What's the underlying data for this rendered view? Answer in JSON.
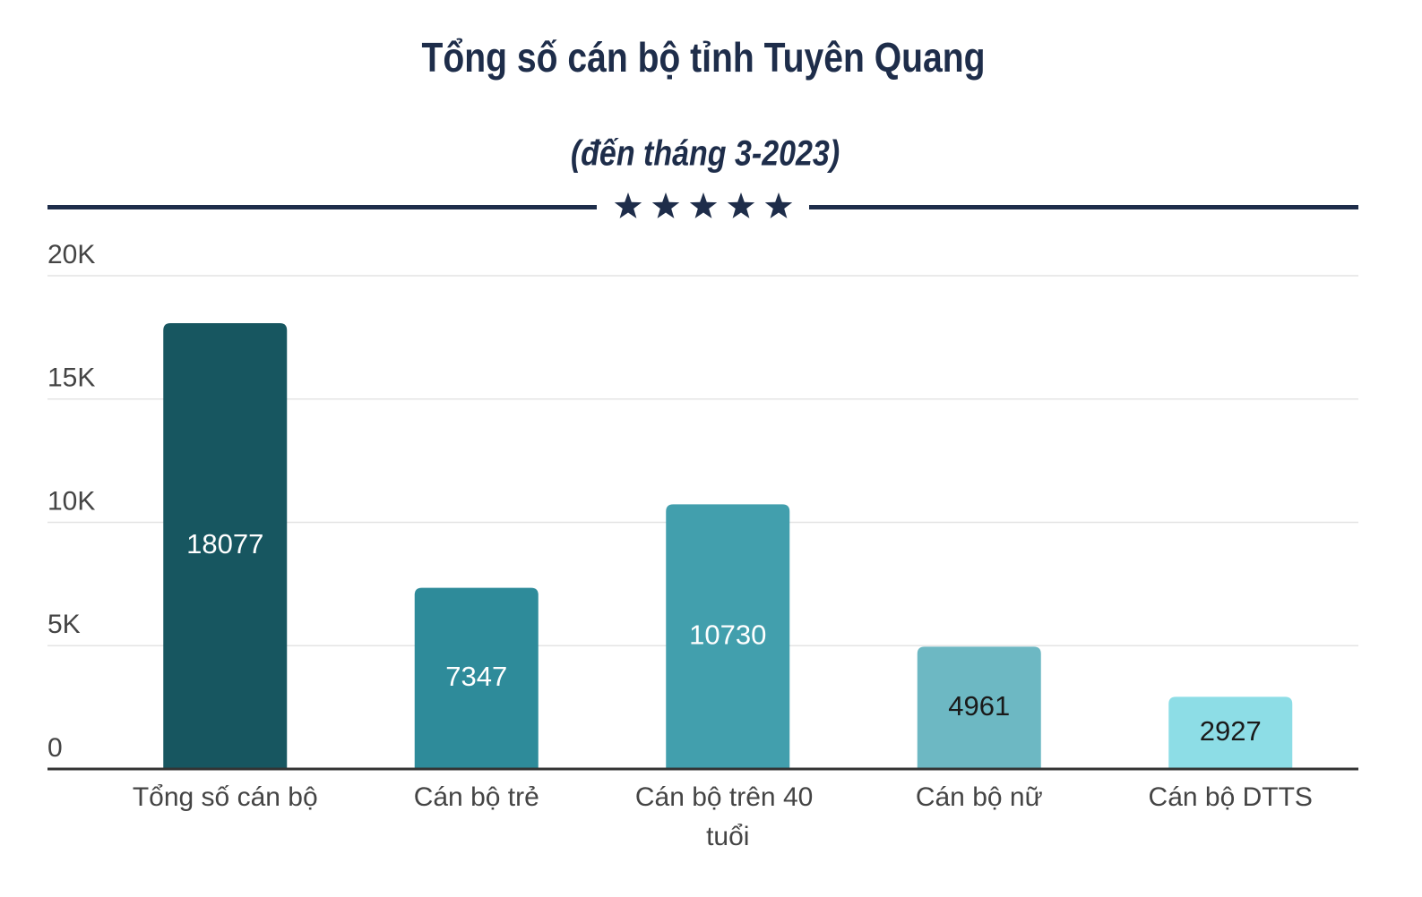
{
  "chart_data": {
    "type": "bar",
    "title": "Tổng số cán bộ tỉnh Tuyên Quang",
    "subtitle": "(đến tháng 3-2023)",
    "categories": [
      "Tổng số cán bộ",
      "Cán bộ trẻ",
      "Cán bộ trên 40 tuổi",
      "Cán bộ nữ",
      "Cán bộ DTTS"
    ],
    "values": [
      18077,
      7347,
      10730,
      4961,
      2927
    ],
    "colors": [
      "#175660",
      "#2e8b9a",
      "#429fad",
      "#6db8c3",
      "#8ddde6"
    ],
    "ylim": [
      0,
      20000
    ],
    "yticks": [
      0,
      {
        "value": 5000,
        "label": "5K"
      },
      {
        "value": 10000,
        "label": "10K"
      },
      {
        "value": 15000,
        "label": "15K"
      },
      {
        "value": 20000,
        "label": "20K"
      }
    ],
    "grid": true
  }
}
